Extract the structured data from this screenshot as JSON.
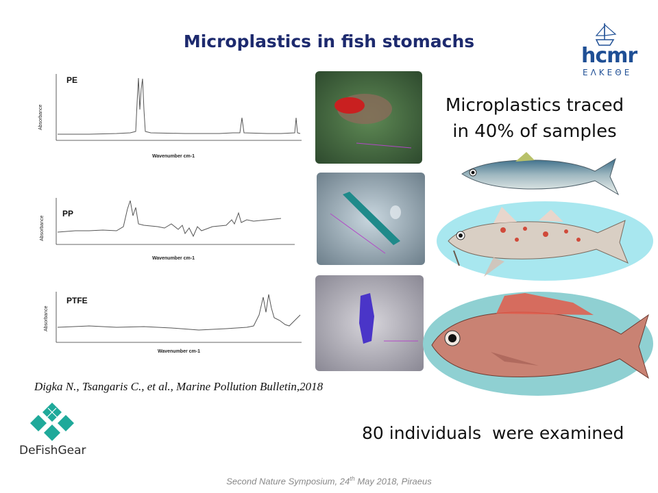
{
  "slide": {
    "title": "Microplastics in fish stomachs",
    "logo_hcmr": {
      "name": "hcmr",
      "subtitle": "ΕΛΚΕΘΕ"
    },
    "logo_defishgear": {
      "name": "DeFishGear"
    },
    "traced_text_line1": "Microplastics traced",
    "traced_text_line2": "in 40% of samples",
    "examined_text": "80 individuals  were examined",
    "citation": "Digka N., Tsangaris C., et al., Marine Pollution Bulletin,2018",
    "footer_text": "Second Nature Symposium, 24",
    "footer_sup": "th",
    "footer_rest": "  May 2018, Piraeus"
  },
  "spectra": [
    {
      "label": "PE",
      "ylabel": "Absorbance",
      "xlabel": "Wavenumber cm-1"
    },
    {
      "label": "PP",
      "ylabel": "Absorbance",
      "xlabel": "Wavenumber cm-1"
    },
    {
      "label": "PTFE",
      "ylabel": "Absorbance",
      "xlabel": "Wavenumber cm-1"
    }
  ],
  "colors": {
    "title": "#1d2a6e",
    "hcmr_blue": "#1f4f95",
    "defish_teal": "#1fa99a",
    "ellipse_cyan": "#a8e7ef",
    "ellipse_teal": "#7ec3c4"
  },
  "icons": [
    "hcmr-ship-icon",
    "defishgear-diamond-icon"
  ]
}
